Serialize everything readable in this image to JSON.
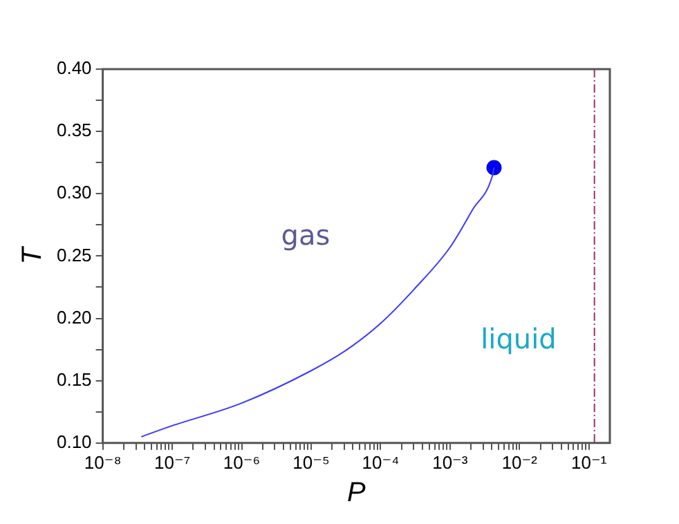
{
  "chart_data": {
    "type": "line",
    "xlabel": "P",
    "ylabel": "T",
    "log": "x",
    "grid": false,
    "legend": false,
    "xlim": [
      1e-08,
      0.2
    ],
    "ylim": [
      0.1,
      0.4
    ],
    "xticks": [
      {
        "value": 1e-08,
        "label": "10⁻⁸"
      },
      {
        "value": 2e-08,
        "label": null
      },
      {
        "value": 3e-08,
        "label": null
      },
      {
        "value": 4e-08,
        "label": null
      },
      {
        "value": 5e-08,
        "label": null
      },
      {
        "value": 6e-08,
        "label": null
      },
      {
        "value": 7e-08,
        "label": null
      },
      {
        "value": 8e-08,
        "label": null
      },
      {
        "value": 9e-08,
        "label": null
      },
      {
        "value": 1e-07,
        "label": "10⁻⁷"
      },
      {
        "value": 2e-07,
        "label": null
      },
      {
        "value": 3e-07,
        "label": null
      },
      {
        "value": 4e-07,
        "label": null
      },
      {
        "value": 5e-07,
        "label": null
      },
      {
        "value": 6e-07,
        "label": null
      },
      {
        "value": 7e-07,
        "label": null
      },
      {
        "value": 8e-07,
        "label": null
      },
      {
        "value": 9e-07,
        "label": null
      },
      {
        "value": 1e-06,
        "label": "10⁻⁶"
      },
      {
        "value": 2e-06,
        "label": null
      },
      {
        "value": 3e-06,
        "label": null
      },
      {
        "value": 4e-06,
        "label": null
      },
      {
        "value": 5e-06,
        "label": null
      },
      {
        "value": 6e-06,
        "label": null
      },
      {
        "value": 7e-06,
        "label": null
      },
      {
        "value": 8e-06,
        "label": null
      },
      {
        "value": 9e-06,
        "label": null
      },
      {
        "value": 1e-05,
        "label": "10⁻⁵"
      },
      {
        "value": 2e-05,
        "label": null
      },
      {
        "value": 3e-05,
        "label": null
      },
      {
        "value": 4e-05,
        "label": null
      },
      {
        "value": 5e-05,
        "label": null
      },
      {
        "value": 6e-05,
        "label": null
      },
      {
        "value": 7e-05,
        "label": null
      },
      {
        "value": 8e-05,
        "label": null
      },
      {
        "value": 9e-05,
        "label": null
      },
      {
        "value": 0.0001,
        "label": "10⁻⁴"
      },
      {
        "value": 0.0002,
        "label": null
      },
      {
        "value": 0.0003,
        "label": null
      },
      {
        "value": 0.0004,
        "label": null
      },
      {
        "value": 0.0005,
        "label": null
      },
      {
        "value": 0.0006,
        "label": null
      },
      {
        "value": 0.0007,
        "label": null
      },
      {
        "value": 0.0008,
        "label": null
      },
      {
        "value": 0.0009,
        "label": null
      },
      {
        "value": 0.001,
        "label": "10⁻³"
      },
      {
        "value": 0.002,
        "label": null
      },
      {
        "value": 0.003,
        "label": null
      },
      {
        "value": 0.004,
        "label": null
      },
      {
        "value": 0.005,
        "label": null
      },
      {
        "value": 0.006,
        "label": null
      },
      {
        "value": 0.007,
        "label": null
      },
      {
        "value": 0.008,
        "label": null
      },
      {
        "value": 0.009,
        "label": null
      },
      {
        "value": 0.01,
        "label": "10⁻²"
      },
      {
        "value": 0.02,
        "label": null
      },
      {
        "value": 0.03,
        "label": null
      },
      {
        "value": 0.04,
        "label": null
      },
      {
        "value": 0.05,
        "label": null
      },
      {
        "value": 0.06,
        "label": null
      },
      {
        "value": 0.07,
        "label": null
      },
      {
        "value": 0.08,
        "label": null
      },
      {
        "value": 0.09,
        "label": null
      },
      {
        "value": 0.1,
        "label": "10⁻¹"
      }
    ],
    "yticks": [
      {
        "value": 0.1,
        "label": "0.10"
      },
      {
        "value": 0.125,
        "label": null
      },
      {
        "value": 0.15,
        "label": "0.15"
      },
      {
        "value": 0.175,
        "label": null
      },
      {
        "value": 0.2,
        "label": "0.20"
      },
      {
        "value": 0.225,
        "label": null
      },
      {
        "value": 0.25,
        "label": "0.25"
      },
      {
        "value": 0.275,
        "label": null
      },
      {
        "value": 0.3,
        "label": "0.30"
      },
      {
        "value": 0.325,
        "label": null
      },
      {
        "value": 0.35,
        "label": "0.35"
      },
      {
        "value": 0.375,
        "label": null
      },
      {
        "value": 0.4,
        "label": "0.40"
      }
    ],
    "series": [
      {
        "type": "line",
        "color": "#3a3aff",
        "marker": "none",
        "line_style": "solid",
        "x": [
          3.6e-08,
          9e-08,
          1e-06,
          1e-05,
          3.3e-05,
          0.0001,
          0.0003,
          0.001,
          0.0021,
          0.0041,
          0.0043
        ],
        "values": [
          0.105,
          0.113,
          0.132,
          0.158,
          0.175,
          0.196,
          0.223,
          0.257,
          0.287,
          0.315,
          0.321
        ]
      },
      {
        "type": "scatter",
        "color": "#0000ee",
        "marker": "circle",
        "x": [
          0.0043
        ],
        "values": [
          0.321
        ]
      }
    ],
    "ref_lines": [
      {
        "axis": "x",
        "value": 0.12,
        "color": "#a0306a",
        "line_style": "dashed"
      }
    ],
    "annotations": [
      "gas",
      "liquid"
    ]
  }
}
